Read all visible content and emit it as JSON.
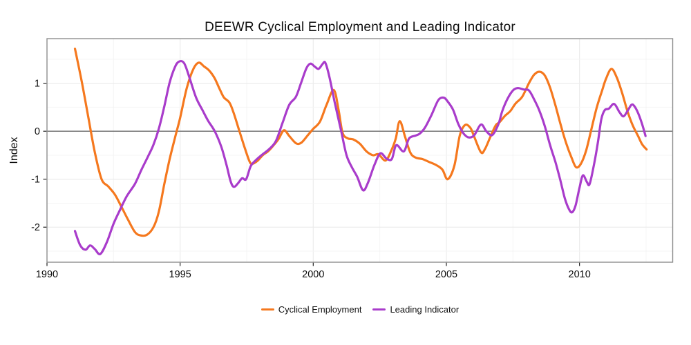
{
  "title": "DEEWR Cyclical Employment and Leading Indicator",
  "colors": {
    "employment": "#F5781E",
    "indicator": "#A93CCB",
    "zero_line": "#7f7f7f",
    "panel_border": "#8f8f8f",
    "grid_major": "#ececec",
    "grid_minor": "#f4f4f4",
    "tick": "#222222",
    "text": "#0d0d0d"
  },
  "chart_data": {
    "type": "line",
    "title": "DEEWR Cyclical Employment and Leading Indicator",
    "xlabel": "",
    "ylabel": "Index",
    "xlim": [
      1990,
      2013.5
    ],
    "ylim": [
      -2.73,
      1.93
    ],
    "x_ticks": [
      1990,
      1995,
      2000,
      2005,
      2010
    ],
    "x_minor_ticks": [
      1992.5,
      1997.5,
      2002.5,
      2007.5,
      2012.5
    ],
    "y_ticks": [
      1,
      0,
      -1,
      -2
    ],
    "y_grid_step": 0.5,
    "grid": true,
    "zero_line": 0,
    "legend_position": "bottom",
    "series": [
      {
        "name": "Cyclical Employment",
        "color": "#F5781E",
        "points": [
          [
            1991.05,
            1.72
          ],
          [
            1991.3,
            1.05
          ],
          [
            1991.55,
            0.3
          ],
          [
            1991.8,
            -0.45
          ],
          [
            1992.05,
            -1.0
          ],
          [
            1992.3,
            -1.15
          ],
          [
            1992.55,
            -1.32
          ],
          [
            1992.8,
            -1.58
          ],
          [
            1993.05,
            -1.85
          ],
          [
            1993.3,
            -2.1
          ],
          [
            1993.5,
            -2.17
          ],
          [
            1993.75,
            -2.16
          ],
          [
            1994.0,
            -2.0
          ],
          [
            1994.2,
            -1.68
          ],
          [
            1994.4,
            -1.12
          ],
          [
            1994.6,
            -0.6
          ],
          [
            1994.8,
            -0.15
          ],
          [
            1995.0,
            0.28
          ],
          [
            1995.25,
            0.9
          ],
          [
            1995.5,
            1.3
          ],
          [
            1995.7,
            1.43
          ],
          [
            1995.9,
            1.35
          ],
          [
            1996.1,
            1.26
          ],
          [
            1996.3,
            1.1
          ],
          [
            1996.5,
            0.86
          ],
          [
            1996.65,
            0.7
          ],
          [
            1996.85,
            0.6
          ],
          [
            1997.0,
            0.4
          ],
          [
            1997.2,
            0.05
          ],
          [
            1997.4,
            -0.3
          ],
          [
            1997.6,
            -0.62
          ],
          [
            1997.7,
            -0.68
          ],
          [
            1997.9,
            -0.62
          ],
          [
            1998.1,
            -0.5
          ],
          [
            1998.3,
            -0.42
          ],
          [
            1998.5,
            -0.3
          ],
          [
            1998.7,
            -0.16
          ],
          [
            1998.9,
            0.02
          ],
          [
            1999.1,
            -0.1
          ],
          [
            1999.35,
            -0.25
          ],
          [
            1999.55,
            -0.24
          ],
          [
            1999.8,
            -0.08
          ],
          [
            2000.0,
            0.05
          ],
          [
            2000.25,
            0.2
          ],
          [
            2000.5,
            0.55
          ],
          [
            2000.77,
            0.86
          ],
          [
            2000.95,
            0.45
          ],
          [
            2001.1,
            -0.03
          ],
          [
            2001.3,
            -0.15
          ],
          [
            2001.5,
            -0.17
          ],
          [
            2001.75,
            -0.26
          ],
          [
            2002.0,
            -0.42
          ],
          [
            2002.25,
            -0.5
          ],
          [
            2002.45,
            -0.48
          ],
          [
            2002.72,
            -0.61
          ],
          [
            2002.95,
            -0.38
          ],
          [
            2003.1,
            -0.15
          ],
          [
            2003.25,
            0.21
          ],
          [
            2003.45,
            -0.12
          ],
          [
            2003.65,
            -0.45
          ],
          [
            2003.85,
            -0.55
          ],
          [
            2004.1,
            -0.58
          ],
          [
            2004.35,
            -0.64
          ],
          [
            2004.6,
            -0.7
          ],
          [
            2004.85,
            -0.8
          ],
          [
            2005.05,
            -1.0
          ],
          [
            2005.3,
            -0.72
          ],
          [
            2005.5,
            -0.1
          ],
          [
            2005.7,
            0.13
          ],
          [
            2005.9,
            0.07
          ],
          [
            2006.05,
            -0.12
          ],
          [
            2006.3,
            -0.44
          ],
          [
            2006.45,
            -0.37
          ],
          [
            2006.65,
            -0.12
          ],
          [
            2006.85,
            0.12
          ],
          [
            2007.0,
            0.19
          ],
          [
            2007.2,
            0.32
          ],
          [
            2007.4,
            0.42
          ],
          [
            2007.6,
            0.58
          ],
          [
            2007.85,
            0.72
          ],
          [
            2008.1,
            1.0
          ],
          [
            2008.3,
            1.18
          ],
          [
            2008.5,
            1.24
          ],
          [
            2008.7,
            1.16
          ],
          [
            2008.9,
            0.9
          ],
          [
            2009.1,
            0.53
          ],
          [
            2009.3,
            0.12
          ],
          [
            2009.5,
            -0.25
          ],
          [
            2009.7,
            -0.55
          ],
          [
            2009.87,
            -0.75
          ],
          [
            2010.05,
            -0.68
          ],
          [
            2010.25,
            -0.4
          ],
          [
            2010.45,
            0.05
          ],
          [
            2010.65,
            0.5
          ],
          [
            2010.85,
            0.85
          ],
          [
            2011.0,
            1.1
          ],
          [
            2011.2,
            1.3
          ],
          [
            2011.4,
            1.12
          ],
          [
            2011.6,
            0.8
          ],
          [
            2011.8,
            0.42
          ],
          [
            2012.0,
            0.12
          ],
          [
            2012.2,
            -0.1
          ],
          [
            2012.35,
            -0.27
          ],
          [
            2012.52,
            -0.38
          ]
        ]
      },
      {
        "name": "Leading Indicator",
        "color": "#A93CCB",
        "points": [
          [
            1991.05,
            -2.08
          ],
          [
            1991.25,
            -2.38
          ],
          [
            1991.45,
            -2.47
          ],
          [
            1991.62,
            -2.38
          ],
          [
            1991.8,
            -2.46
          ],
          [
            1992.0,
            -2.56
          ],
          [
            1992.25,
            -2.31
          ],
          [
            1992.5,
            -1.93
          ],
          [
            1992.75,
            -1.63
          ],
          [
            1993.0,
            -1.35
          ],
          [
            1993.3,
            -1.1
          ],
          [
            1993.55,
            -0.8
          ],
          [
            1993.8,
            -0.52
          ],
          [
            1994.0,
            -0.28
          ],
          [
            1994.2,
            0.05
          ],
          [
            1994.4,
            0.5
          ],
          [
            1994.6,
            1.0
          ],
          [
            1994.8,
            1.33
          ],
          [
            1994.95,
            1.45
          ],
          [
            1995.15,
            1.42
          ],
          [
            1995.35,
            1.12
          ],
          [
            1995.6,
            0.7
          ],
          [
            1995.85,
            0.43
          ],
          [
            1996.05,
            0.22
          ],
          [
            1996.3,
            0.0
          ],
          [
            1996.55,
            -0.33
          ],
          [
            1996.75,
            -0.72
          ],
          [
            1996.9,
            -1.05
          ],
          [
            1997.02,
            -1.16
          ],
          [
            1997.18,
            -1.08
          ],
          [
            1997.33,
            -0.98
          ],
          [
            1997.48,
            -1.0
          ],
          [
            1997.65,
            -0.73
          ],
          [
            1997.85,
            -0.6
          ],
          [
            1998.1,
            -0.48
          ],
          [
            1998.35,
            -0.37
          ],
          [
            1998.6,
            -0.2
          ],
          [
            1998.85,
            0.18
          ],
          [
            1999.1,
            0.55
          ],
          [
            1999.35,
            0.72
          ],
          [
            1999.55,
            1.02
          ],
          [
            1999.75,
            1.32
          ],
          [
            1999.9,
            1.41
          ],
          [
            2000.05,
            1.35
          ],
          [
            2000.2,
            1.3
          ],
          [
            2000.35,
            1.4
          ],
          [
            2000.45,
            1.43
          ],
          [
            2000.6,
            1.15
          ],
          [
            2000.8,
            0.62
          ],
          [
            2001.05,
            0.0
          ],
          [
            2001.25,
            -0.5
          ],
          [
            2001.45,
            -0.75
          ],
          [
            2001.65,
            -0.95
          ],
          [
            2001.87,
            -1.23
          ],
          [
            2002.05,
            -1.08
          ],
          [
            2002.3,
            -0.7
          ],
          [
            2002.52,
            -0.46
          ],
          [
            2002.75,
            -0.57
          ],
          [
            2002.95,
            -0.58
          ],
          [
            2003.12,
            -0.29
          ],
          [
            2003.4,
            -0.42
          ],
          [
            2003.6,
            -0.15
          ],
          [
            2003.85,
            -0.09
          ],
          [
            2004.0,
            -0.05
          ],
          [
            2004.2,
            0.08
          ],
          [
            2004.45,
            0.35
          ],
          [
            2004.7,
            0.65
          ],
          [
            2004.9,
            0.7
          ],
          [
            2005.05,
            0.62
          ],
          [
            2005.25,
            0.45
          ],
          [
            2005.45,
            0.15
          ],
          [
            2005.65,
            -0.05
          ],
          [
            2005.85,
            -0.13
          ],
          [
            2006.05,
            -0.08
          ],
          [
            2006.3,
            0.14
          ],
          [
            2006.5,
            0.0
          ],
          [
            2006.72,
            -0.08
          ],
          [
            2006.95,
            0.14
          ],
          [
            2007.1,
            0.42
          ],
          [
            2007.3,
            0.68
          ],
          [
            2007.5,
            0.85
          ],
          [
            2007.68,
            0.9
          ],
          [
            2007.9,
            0.87
          ],
          [
            2008.1,
            0.85
          ],
          [
            2008.3,
            0.66
          ],
          [
            2008.5,
            0.42
          ],
          [
            2008.7,
            0.1
          ],
          [
            2008.9,
            -0.3
          ],
          [
            2009.1,
            -0.65
          ],
          [
            2009.28,
            -1.02
          ],
          [
            2009.45,
            -1.4
          ],
          [
            2009.6,
            -1.62
          ],
          [
            2009.72,
            -1.69
          ],
          [
            2009.85,
            -1.55
          ],
          [
            2010.0,
            -1.18
          ],
          [
            2010.13,
            -0.92
          ],
          [
            2010.28,
            -1.06
          ],
          [
            2010.38,
            -1.1
          ],
          [
            2010.55,
            -0.68
          ],
          [
            2010.7,
            -0.2
          ],
          [
            2010.82,
            0.25
          ],
          [
            2010.95,
            0.44
          ],
          [
            2011.1,
            0.47
          ],
          [
            2011.3,
            0.57
          ],
          [
            2011.5,
            0.4
          ],
          [
            2011.65,
            0.31
          ],
          [
            2011.8,
            0.42
          ],
          [
            2011.95,
            0.55
          ],
          [
            2012.05,
            0.53
          ],
          [
            2012.2,
            0.38
          ],
          [
            2012.35,
            0.15
          ],
          [
            2012.48,
            -0.1
          ]
        ]
      }
    ]
  }
}
